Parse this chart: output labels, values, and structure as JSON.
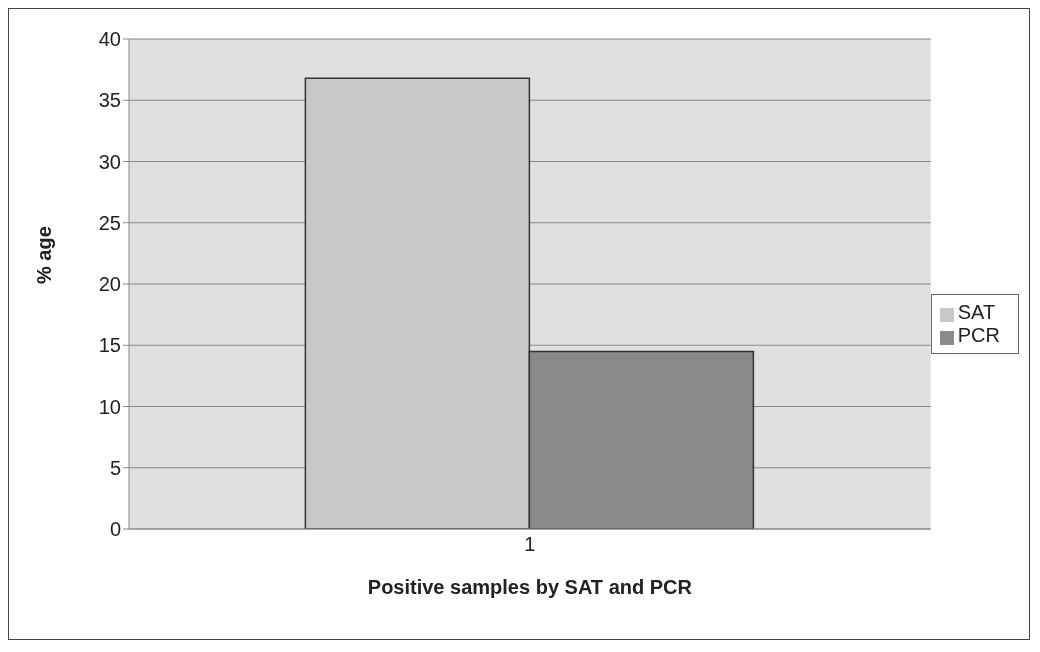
{
  "chart_data": {
    "type": "bar",
    "xlabel": "Positive samples by SAT and PCR",
    "ylabel": "% age",
    "categories": [
      "1"
    ],
    "series": [
      {
        "name": "SAT",
        "color": "#c8c8c8",
        "values": [
          36.8
        ]
      },
      {
        "name": "PCR",
        "color": "#8a8a8a",
        "values": [
          14.5
        ]
      }
    ],
    "ylim": [
      0,
      40
    ],
    "yticks": [
      0,
      5,
      10,
      15,
      20,
      25,
      30,
      35,
      40
    ],
    "grid": "y",
    "legend": "right"
  }
}
